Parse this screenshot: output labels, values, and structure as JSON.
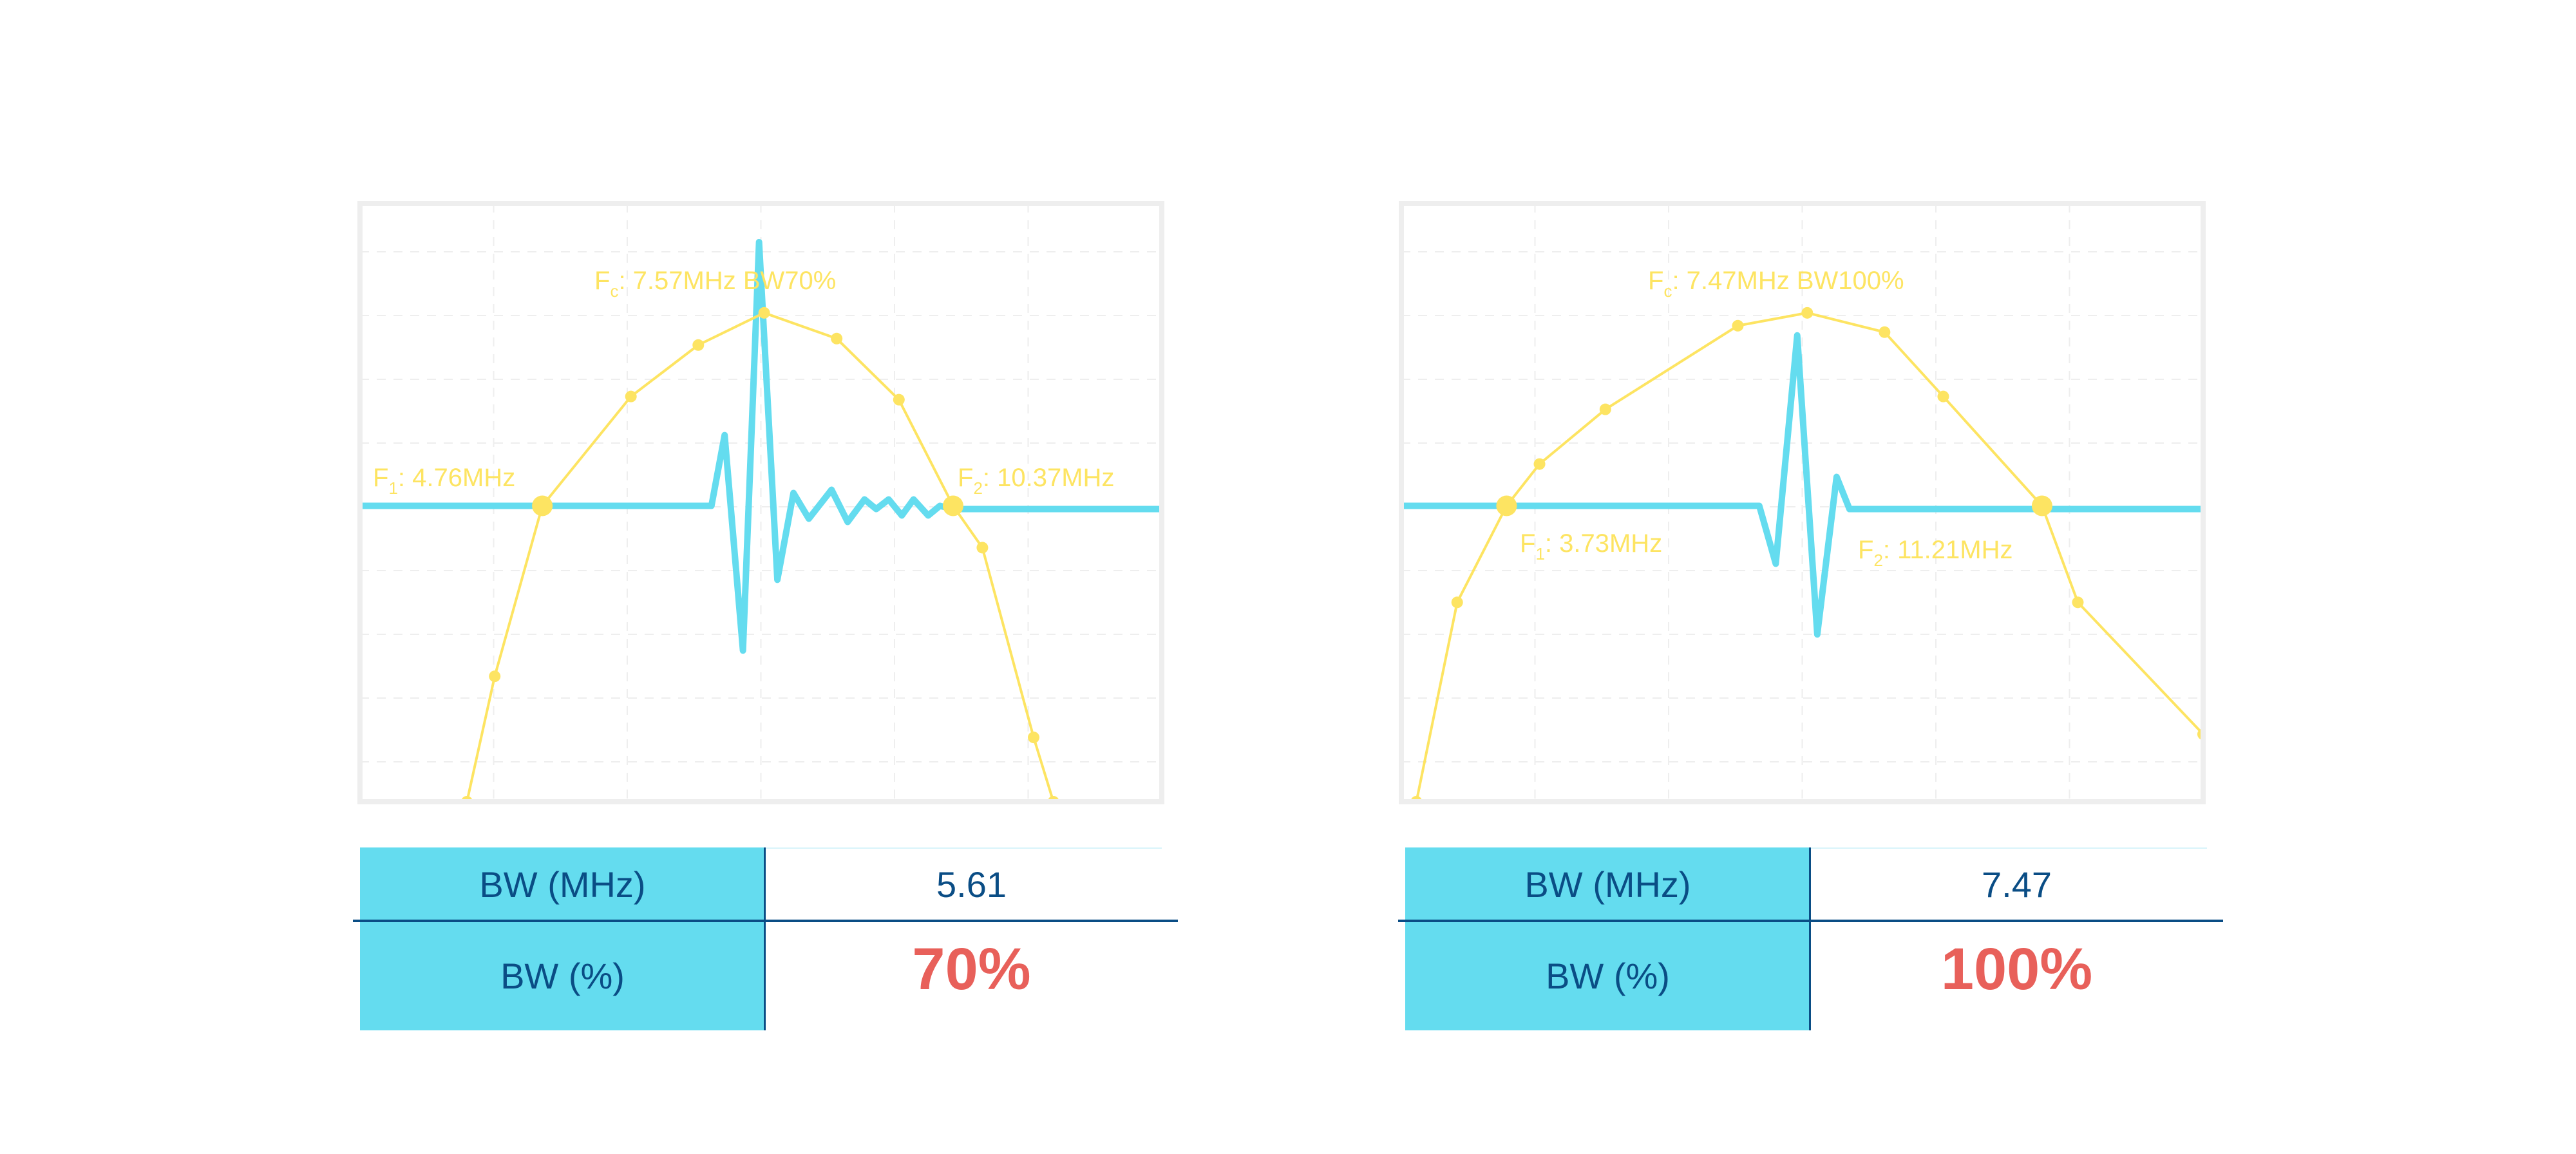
{
  "colors": {
    "response": "#fde462",
    "pulse": "#64dcef",
    "header": "#64dcef",
    "text": "#0a4d85",
    "highlight": "#e8605a",
    "frame": "#eeeeee"
  },
  "chart_data": [
    {
      "type": "line",
      "grid": true,
      "xlim": [
        2.27,
        13.22
      ],
      "ylim": [
        -15.2,
        3.4
      ],
      "series": [
        {
          "role": "frequency-response",
          "points": [
            [
              3.73,
              -15.2
            ],
            [
              4.11,
              -11.3
            ],
            [
              4.76,
              -6.0
            ],
            [
              5.97,
              -2.6
            ],
            [
              6.89,
              -1.0
            ],
            [
              7.79,
              0
            ],
            [
              8.78,
              -0.8
            ],
            [
              9.63,
              -2.7
            ],
            [
              10.37,
              -6.0
            ],
            [
              10.77,
              -7.3
            ],
            [
              11.47,
              -13.2
            ],
            [
              11.74,
              -15.2
            ]
          ]
        },
        {
          "role": "pulse",
          "points": [
            [
              2.27,
              -6
            ],
            [
              7.07,
              -6
            ],
            [
              7.25,
              -3.8
            ],
            [
              7.5,
              -10.5
            ],
            [
              7.72,
              2.2
            ],
            [
              7.97,
              -8.3
            ],
            [
              8.19,
              -5.6
            ],
            [
              8.4,
              -6.4
            ],
            [
              8.71,
              -5.5
            ],
            [
              8.93,
              -6.5
            ],
            [
              9.16,
              -5.8
            ],
            [
              9.32,
              -6.1
            ],
            [
              9.49,
              -5.8
            ],
            [
              9.67,
              -6.3
            ],
            [
              9.83,
              -5.8
            ],
            [
              10.03,
              -6.3
            ],
            [
              10.19,
              -6.0
            ],
            [
              10.37,
              -6.1
            ],
            [
              13.22,
              -6.1
            ]
          ]
        }
      ],
      "annotations": {
        "fc": {
          "sym": "F",
          "sub": "c",
          "text": ": 7.57MHz BW70%"
        },
        "f1": {
          "sym": "F",
          "sub": "1",
          "text": ": 4.76MHz"
        },
        "f2": {
          "sym": "F",
          "sub": "2",
          "text": ": 10.37MHz"
        }
      },
      "table": {
        "bw_mhz_label": "BW (MHz)",
        "bw_mhz_value": "5.61",
        "bw_pct_label": "BW (%)",
        "bw_pct_value": "70%"
      }
    },
    {
      "type": "line",
      "grid": true,
      "xlim": [
        2.26,
        13.46
      ],
      "ylim": [
        -15.2,
        3.4
      ],
      "series": [
        {
          "role": "frequency-response",
          "points": [
            [
              2.47,
              -15.2
            ],
            [
              3.04,
              -9.0
            ],
            [
              3.73,
              -6.0
            ],
            [
              4.19,
              -4.7
            ],
            [
              5.11,
              -3.0
            ],
            [
              6.96,
              -0.4
            ],
            [
              7.93,
              0
            ],
            [
              9.01,
              -0.6
            ],
            [
              9.83,
              -2.6
            ],
            [
              11.21,
              -6.0
            ],
            [
              11.71,
              -9.0
            ],
            [
              13.46,
              -13.1
            ]
          ]
        },
        {
          "role": "pulse",
          "points": [
            [
              2.26,
              -6
            ],
            [
              7.26,
              -6
            ],
            [
              7.49,
              -7.8
            ],
            [
              7.79,
              -0.7
            ],
            [
              8.07,
              -10
            ],
            [
              8.34,
              -5.1
            ],
            [
              8.52,
              -6.1
            ],
            [
              13.46,
              -6.1
            ]
          ]
        }
      ],
      "annotations": {
        "fc": {
          "sym": "F",
          "sub": "c",
          "text": ": 7.47MHz BW100%"
        },
        "f1": {
          "sym": "F",
          "sub": "1",
          "text": ": 3.73MHz"
        },
        "f2": {
          "sym": "F",
          "sub": "2",
          "text": ": 11.21MHz"
        }
      },
      "table": {
        "bw_mhz_label": "BW (MHz)",
        "bw_mhz_value": "7.47",
        "bw_pct_label": "BW (%)",
        "bw_pct_value": "100%"
      }
    }
  ]
}
